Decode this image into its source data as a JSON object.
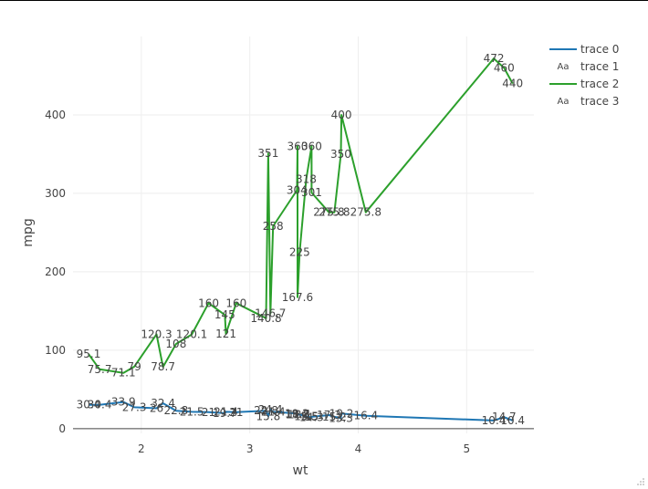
{
  "chart_data": {
    "type": "line",
    "xlabel": "wt",
    "ylabel": "mpg",
    "xlim": [
      1.37,
      5.62
    ],
    "ylim": [
      -6,
      500
    ],
    "x_ticks": [
      "2",
      "3",
      "4",
      "5"
    ],
    "x_tick_values": [
      2,
      3,
      4,
      5
    ],
    "y_ticks": [
      "0",
      "100",
      "200",
      "300",
      "400"
    ],
    "y_tick_values": [
      0,
      100,
      200,
      300,
      400
    ],
    "grid": true,
    "legend_position": "top-right",
    "legend": [
      "trace 0",
      "trace 1",
      "trace 2",
      "trace 3"
    ],
    "colors": {
      "trace_0": "#1f77b4",
      "trace_2": "#2ca02c",
      "text": "#444444",
      "grid": "#eeeeee"
    },
    "series": [
      {
        "name": "trace 0",
        "mode": "lines",
        "color": "#1f77b4",
        "points": [
          [
            1.513,
            30.4
          ],
          [
            1.615,
            30.4
          ],
          [
            1.835,
            33.9
          ],
          [
            1.935,
            27.3
          ],
          [
            2.14,
            26.0
          ],
          [
            2.2,
            32.4
          ],
          [
            2.32,
            22.8
          ],
          [
            2.465,
            21.5
          ],
          [
            2.62,
            21.0
          ],
          [
            2.77,
            19.7
          ],
          [
            2.78,
            21.4
          ],
          [
            2.875,
            21.0
          ],
          [
            3.15,
            22.8
          ],
          [
            3.17,
            15.8
          ],
          [
            3.19,
            24.4
          ],
          [
            3.215,
            21.4
          ],
          [
            3.435,
            19.2
          ],
          [
            3.44,
            18.7
          ],
          [
            3.44,
            17.8
          ],
          [
            3.46,
            18.1
          ],
          [
            3.52,
            15.5
          ],
          [
            3.57,
            14.3
          ],
          [
            3.57,
            15.0
          ],
          [
            3.73,
            17.3
          ],
          [
            3.78,
            15.2
          ],
          [
            3.84,
            13.3
          ],
          [
            3.845,
            19.2
          ],
          [
            4.07,
            16.4
          ],
          [
            5.25,
            10.4
          ],
          [
            5.345,
            14.7
          ],
          [
            5.424,
            10.4
          ]
        ]
      },
      {
        "name": "trace 1",
        "mode": "text",
        "points": [
          {
            "x": 1.513,
            "y": 30.4,
            "label": "30.4"
          },
          {
            "x": 1.615,
            "y": 30.4,
            "label": "30.4"
          },
          {
            "x": 1.835,
            "y": 33.9,
            "label": "33.9"
          },
          {
            "x": 1.935,
            "y": 27.3,
            "label": "27.3"
          },
          {
            "x": 2.14,
            "y": 26.0,
            "label": "26"
          },
          {
            "x": 2.2,
            "y": 32.4,
            "label": "32.4"
          },
          {
            "x": 2.32,
            "y": 22.8,
            "label": "22.8"
          },
          {
            "x": 2.465,
            "y": 21.5,
            "label": "21.5"
          },
          {
            "x": 2.62,
            "y": 21.0,
            "label": "21"
          },
          {
            "x": 2.77,
            "y": 19.7,
            "label": "19.7"
          },
          {
            "x": 2.78,
            "y": 21.4,
            "label": "21.4"
          },
          {
            "x": 2.875,
            "y": 21.0,
            "label": "21"
          },
          {
            "x": 3.15,
            "y": 22.8,
            "label": "22.8"
          },
          {
            "x": 3.17,
            "y": 15.8,
            "label": "15.8"
          },
          {
            "x": 3.19,
            "y": 24.4,
            "label": "24.4"
          },
          {
            "x": 3.215,
            "y": 21.4,
            "label": "21.4"
          },
          {
            "x": 3.435,
            "y": 19.2,
            "label": "19.2"
          },
          {
            "x": 3.44,
            "y": 18.7,
            "label": "18.7"
          },
          {
            "x": 3.44,
            "y": 17.8,
            "label": "17.8"
          },
          {
            "x": 3.46,
            "y": 18.1,
            "label": "18.1"
          },
          {
            "x": 3.52,
            "y": 15.5,
            "label": "15.5"
          },
          {
            "x": 3.57,
            "y": 14.3,
            "label": "14.3"
          },
          {
            "x": 3.57,
            "y": 15.0,
            "label": "15"
          },
          {
            "x": 3.73,
            "y": 17.3,
            "label": "17.3"
          },
          {
            "x": 3.78,
            "y": 15.2,
            "label": "15.2"
          },
          {
            "x": 3.84,
            "y": 13.3,
            "label": "13.3"
          },
          {
            "x": 3.845,
            "y": 19.2,
            "label": "19.2"
          },
          {
            "x": 4.07,
            "y": 16.4,
            "label": "16.4"
          },
          {
            "x": 5.25,
            "y": 10.4,
            "label": "10.4"
          },
          {
            "x": 5.345,
            "y": 14.7,
            "label": "14.7"
          },
          {
            "x": 5.424,
            "y": 10.4,
            "label": "10.4"
          }
        ]
      },
      {
        "name": "trace 2",
        "mode": "lines",
        "color": "#2ca02c",
        "points": [
          [
            1.513,
            95.1
          ],
          [
            1.615,
            75.7
          ],
          [
            1.835,
            71.1
          ],
          [
            1.935,
            79.0
          ],
          [
            2.14,
            120.3
          ],
          [
            2.2,
            78.7
          ],
          [
            2.32,
            108.0
          ],
          [
            2.465,
            120.1
          ],
          [
            2.62,
            160.0
          ],
          [
            2.77,
            145.0
          ],
          [
            2.78,
            121.0
          ],
          [
            2.875,
            160.0
          ],
          [
            3.15,
            140.8
          ],
          [
            3.17,
            351.0
          ],
          [
            3.19,
            146.7
          ],
          [
            3.215,
            258.0
          ],
          [
            3.435,
            304.0
          ],
          [
            3.44,
            360.0
          ],
          [
            3.44,
            167.6
          ],
          [
            3.46,
            225.0
          ],
          [
            3.52,
            318.0
          ],
          [
            3.57,
            360.0
          ],
          [
            3.57,
            301.0
          ],
          [
            3.73,
            275.8
          ],
          [
            3.78,
            275.8
          ],
          [
            3.84,
            350.0
          ],
          [
            3.845,
            400.0
          ],
          [
            4.07,
            275.8
          ],
          [
            5.25,
            472.0
          ],
          [
            5.345,
            460.0
          ],
          [
            5.424,
            440.0
          ]
        ]
      },
      {
        "name": "trace 3",
        "mode": "text",
        "points": [
          {
            "x": 1.513,
            "y": 95.1,
            "label": "95.1"
          },
          {
            "x": 1.615,
            "y": 75.7,
            "label": "75.7"
          },
          {
            "x": 1.835,
            "y": 71.1,
            "label": "71.1"
          },
          {
            "x": 1.935,
            "y": 79.0,
            "label": "79"
          },
          {
            "x": 2.14,
            "y": 120.3,
            "label": "120.3"
          },
          {
            "x": 2.2,
            "y": 78.7,
            "label": "78.7"
          },
          {
            "x": 2.32,
            "y": 108.0,
            "label": "108"
          },
          {
            "x": 2.465,
            "y": 120.1,
            "label": "120.1"
          },
          {
            "x": 2.62,
            "y": 160.0,
            "label": "160"
          },
          {
            "x": 2.77,
            "y": 145.0,
            "label": "145"
          },
          {
            "x": 2.78,
            "y": 121.0,
            "label": "121"
          },
          {
            "x": 2.875,
            "y": 160.0,
            "label": "160"
          },
          {
            "x": 3.15,
            "y": 140.8,
            "label": "140.8"
          },
          {
            "x": 3.17,
            "y": 351.0,
            "label": "351"
          },
          {
            "x": 3.19,
            "y": 146.7,
            "label": "146.7"
          },
          {
            "x": 3.215,
            "y": 258.0,
            "label": "258"
          },
          {
            "x": 3.435,
            "y": 304.0,
            "label": "304"
          },
          {
            "x": 3.44,
            "y": 360.0,
            "label": "360"
          },
          {
            "x": 3.44,
            "y": 167.6,
            "label": "167.6"
          },
          {
            "x": 3.46,
            "y": 225.0,
            "label": "225"
          },
          {
            "x": 3.52,
            "y": 318.0,
            "label": "318"
          },
          {
            "x": 3.57,
            "y": 360.0,
            "label": "360"
          },
          {
            "x": 3.57,
            "y": 301.0,
            "label": "301"
          },
          {
            "x": 3.73,
            "y": 275.8,
            "label": "275.8"
          },
          {
            "x": 3.78,
            "y": 275.8,
            "label": "275.8"
          },
          {
            "x": 3.84,
            "y": 350.0,
            "label": "350"
          },
          {
            "x": 3.845,
            "y": 400.0,
            "label": "400"
          },
          {
            "x": 4.07,
            "y": 275.8,
            "label": "275.8"
          },
          {
            "x": 5.25,
            "y": 472.0,
            "label": "472"
          },
          {
            "x": 5.345,
            "y": 460.0,
            "label": "460"
          },
          {
            "x": 5.424,
            "y": 440.0,
            "label": "440"
          }
        ]
      }
    ]
  },
  "legend_glyph": "Aa",
  "icons": {
    "resize": "resize-handle-icon"
  }
}
